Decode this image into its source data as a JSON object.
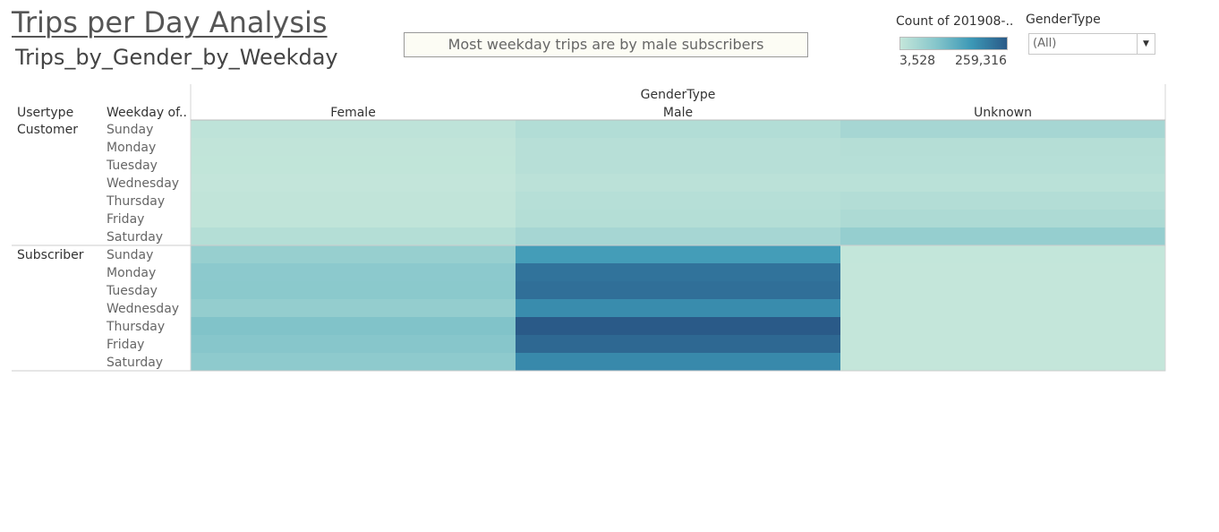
{
  "page": {
    "title": "Trips per Day Analysis",
    "sheet_title": "Trips_by_Gender_by_Weekday",
    "annotation": "Most weekday trips are by male subscribers"
  },
  "legend": {
    "title": "Count of 201908-..",
    "min_label": "3,528",
    "max_label": "259,316",
    "colors": [
      "#c4e6da",
      "#86c6cb",
      "#3c98b6",
      "#2a5a88"
    ]
  },
  "filter": {
    "title": "GenderType",
    "selected": "(All)"
  },
  "chart_data": {
    "type": "heatmap",
    "column_group_label": "GenderType",
    "row_header_labels": [
      "Usertype",
      "Weekday of.."
    ],
    "columns": [
      "Female",
      "Male",
      "Unknown"
    ],
    "weekdays": [
      "Sunday",
      "Monday",
      "Tuesday",
      "Wednesday",
      "Thursday",
      "Friday",
      "Saturday"
    ],
    "color_range": [
      3528,
      259316
    ],
    "groups": [
      {
        "usertype": "Customer",
        "values": [
          [
            12000,
            28000,
            45000
          ],
          [
            8000,
            22000,
            24000
          ],
          [
            7000,
            21000,
            23000
          ],
          [
            5000,
            16000,
            17000
          ],
          [
            8000,
            23000,
            27000
          ],
          [
            9000,
            25000,
            35000
          ],
          [
            25000,
            45000,
            68000
          ]
        ]
      },
      {
        "usertype": "Subscriber",
        "values": [
          [
            65000,
            165000,
            4500
          ],
          [
            80000,
            225000,
            4000
          ],
          [
            82000,
            230000,
            4000
          ],
          [
            70000,
            190000,
            4000
          ],
          [
            95000,
            259316,
            3800
          ],
          [
            88000,
            240000,
            3528
          ],
          [
            78000,
            195000,
            4200
          ]
        ]
      }
    ]
  }
}
